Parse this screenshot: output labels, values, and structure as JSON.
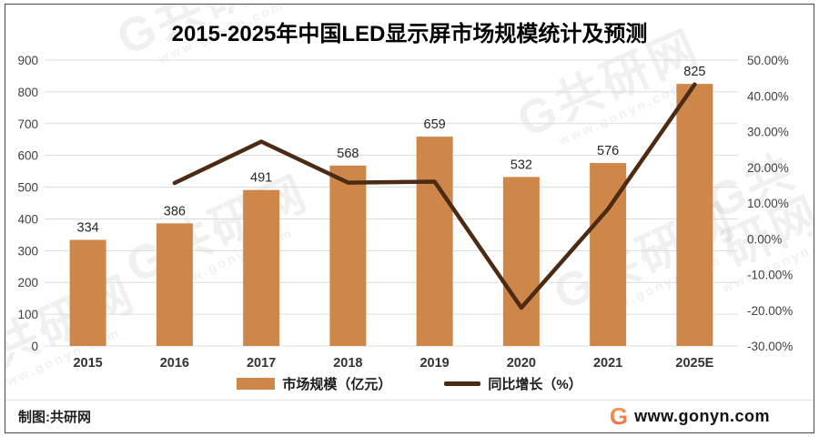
{
  "watermark": {
    "brand": "G共研网",
    "site": "www.gonyn.com"
  },
  "footer": {
    "credit": "制图:共研网",
    "site": "www.gonyn.com"
  },
  "chart_data": {
    "type": "combo",
    "title": "2015-2025年中国LED显示屏市场规模统计及预测",
    "categories": [
      "2015",
      "2016",
      "2017",
      "2018",
      "2019",
      "2020",
      "2021",
      "2025E"
    ],
    "series": [
      {
        "name": "市场规模（亿元）",
        "type": "bar",
        "axis": "left",
        "color": "#CE8749",
        "values": [
          334,
          386,
          491,
          568,
          659,
          532,
          576,
          825
        ],
        "data_labels": [
          "334",
          "386",
          "491",
          "568",
          "659",
          "532",
          "576",
          "825"
        ]
      },
      {
        "name": "同比增长（%）",
        "type": "line",
        "axis": "right",
        "color": "#4C2B15",
        "values": [
          null,
          15.6,
          27.2,
          15.7,
          16.0,
          -19.3,
          8.3,
          43.2
        ]
      }
    ],
    "left_axis": {
      "min": 0,
      "max": 900,
      "step": 100,
      "labels": [
        "0",
        "100",
        "200",
        "300",
        "400",
        "500",
        "600",
        "700",
        "800",
        "900"
      ]
    },
    "right_axis": {
      "min": -30,
      "max": 50,
      "step": 10,
      "labels": [
        "-30.00%",
        "-20.00%",
        "-10.00%",
        "0.00%",
        "10.00%",
        "20.00%",
        "30.00%",
        "40.00%",
        "50.00%"
      ]
    },
    "grid": true,
    "grid_color": "#DCDCDC",
    "legend_position": "bottom"
  }
}
